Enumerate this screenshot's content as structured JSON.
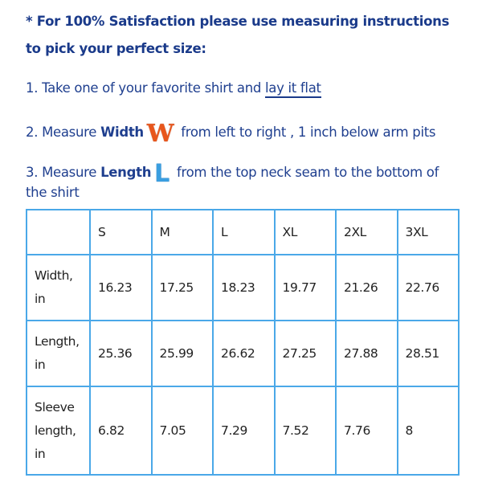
{
  "intro": {
    "line1": "* For 100% Satisfaction please use measuring instructions",
    "line2": "to pick your perfect size:"
  },
  "steps": [
    {
      "prefix": "1. Take one of your favorite shirt and ",
      "link": "lay it flat"
    },
    {
      "prefix": "2. Measure ",
      "bold": "Width",
      "icon": "W",
      "suffix": " from left to right , 1 inch below arm pits"
    },
    {
      "prefix": "3. Measure ",
      "bold": "Length",
      "icon": "L",
      "suffix": " from the top neck seam to the bottom of",
      "cont": "the shirt"
    }
  ],
  "table": {
    "headers": [
      "",
      "S",
      "M",
      "L",
      "XL",
      "2XL",
      "3XL"
    ],
    "rows": [
      {
        "label": [
          "Width,",
          "in"
        ],
        "values": [
          "16.23",
          "17.25",
          "18.23",
          "19.77",
          "21.26",
          "22.76"
        ]
      },
      {
        "label": [
          "Length,",
          "in"
        ],
        "values": [
          "25.36",
          "25.99",
          "26.62",
          "27.25",
          "27.88",
          "28.51"
        ]
      },
      {
        "label": [
          "Sleeve",
          "length,",
          "in"
        ],
        "values": [
          "6.82",
          "7.05",
          "7.29",
          "7.52",
          "7.76",
          "8"
        ]
      }
    ]
  },
  "colors": {
    "text": "#1f3f8f",
    "table_border": "#4aa8e8",
    "width_icon": "#e8561c",
    "length_icon": "#3a9ee0"
  }
}
